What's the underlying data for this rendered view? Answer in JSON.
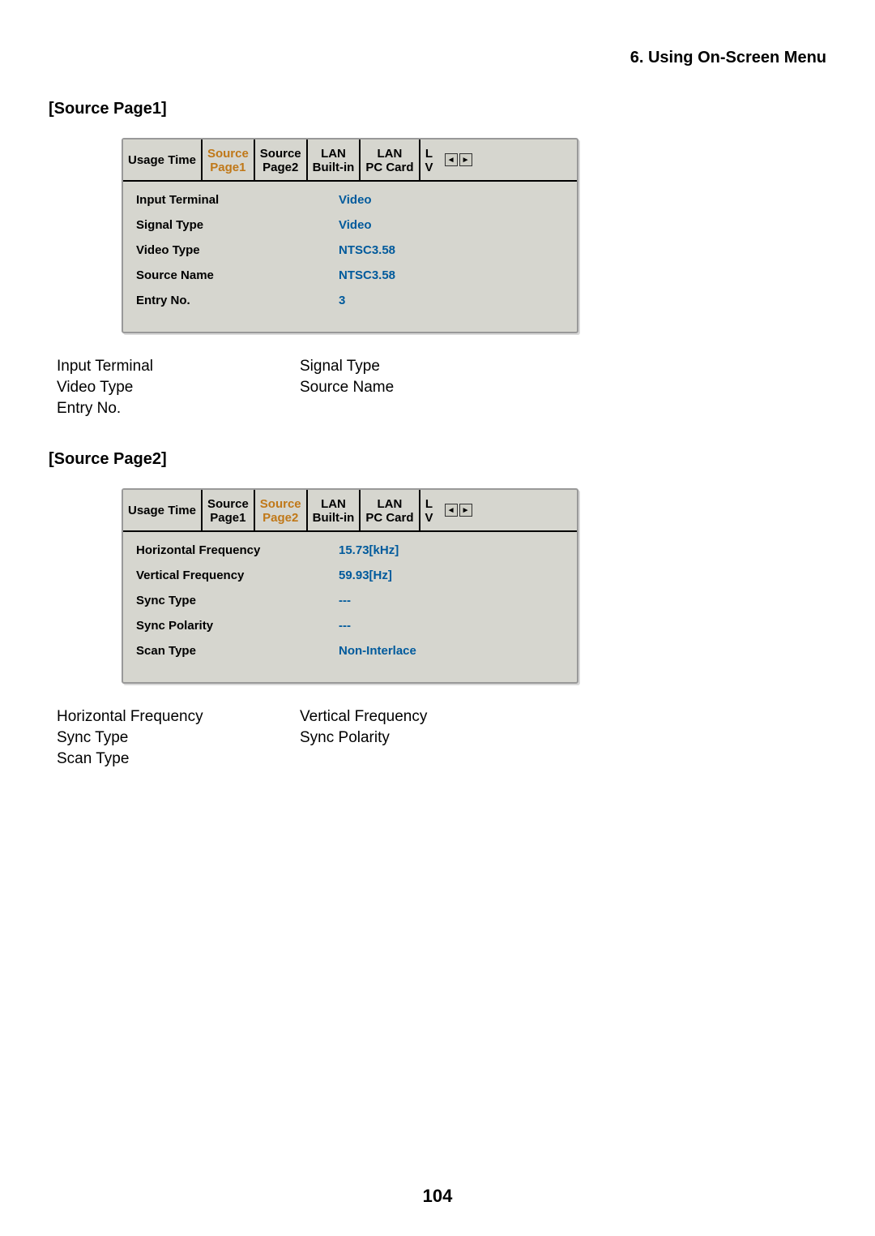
{
  "chapter": "6. Using On-Screen Menu",
  "page_number": "104",
  "section1": {
    "title": "[Source Page1]",
    "tabs": [
      {
        "line1": "Usage Time",
        "line2": "",
        "active": false,
        "single": true
      },
      {
        "line1": "Source",
        "line2": "Page1",
        "active": true
      },
      {
        "line1": "Source",
        "line2": "Page2",
        "active": false
      },
      {
        "line1": "LAN",
        "line2": "Built-in",
        "active": false
      },
      {
        "line1": "LAN",
        "line2": "PC Card",
        "active": false
      },
      {
        "line1": "L",
        "line2": "V",
        "active": false,
        "cut": true
      }
    ],
    "rows": [
      {
        "label": "Input Terminal",
        "value": "Video"
      },
      {
        "label": "Signal Type",
        "value": "Video"
      },
      {
        "label": "Video Type",
        "value": "NTSC3.58"
      },
      {
        "label": "Source Name",
        "value": "NTSC3.58"
      },
      {
        "label": "Entry No.",
        "value": "3"
      }
    ],
    "summary": [
      "Input Terminal",
      "Signal Type",
      "Video Type",
      "Source Name",
      "Entry No.",
      ""
    ]
  },
  "section2": {
    "title": "[Source Page2]",
    "tabs": [
      {
        "line1": "Usage Time",
        "line2": "",
        "active": false,
        "single": true
      },
      {
        "line1": "Source",
        "line2": "Page1",
        "active": false
      },
      {
        "line1": "Source",
        "line2": "Page2",
        "active": true
      },
      {
        "line1": "LAN",
        "line2": "Built-in",
        "active": false
      },
      {
        "line1": "LAN",
        "line2": "PC Card",
        "active": false
      },
      {
        "line1": "L",
        "line2": "V",
        "active": false,
        "cut": true
      }
    ],
    "rows": [
      {
        "label": "Horizontal Frequency",
        "value": "15.73[kHz]"
      },
      {
        "label": "Vertical Frequency",
        "value": "59.93[Hz]"
      },
      {
        "label": "Sync Type",
        "value": "---"
      },
      {
        "label": "Sync Polarity",
        "value": "---"
      },
      {
        "label": "Scan Type",
        "value": "Non-Interlace"
      }
    ],
    "summary": [
      "Horizontal Frequency",
      "Vertical Frequency",
      "Sync Type",
      "Sync Polarity",
      "Scan Type",
      ""
    ]
  },
  "colors": {
    "active_tab_text": "#c07818",
    "value_text": "#005a9c",
    "panel_bg": "#d6d6cf"
  }
}
